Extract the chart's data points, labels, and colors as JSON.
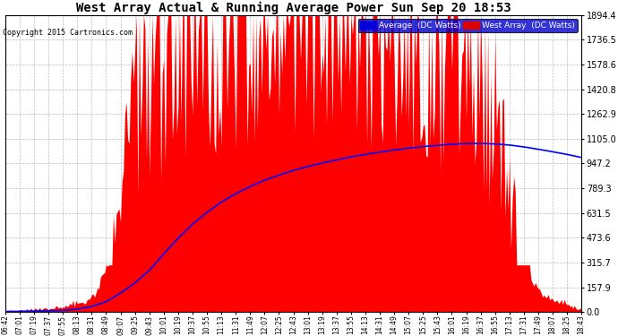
{
  "title": "West Array Actual & Running Average Power Sun Sep 20 18:53",
  "copyright": "Copyright 2015 Cartronics.com",
  "legend_avg": "Average  (DC Watts)",
  "legend_west": "West Array  (DC Watts)",
  "ymax": 1894.4,
  "yticks": [
    0.0,
    157.9,
    315.7,
    473.6,
    631.5,
    789.3,
    947.2,
    1105.0,
    1262.9,
    1420.8,
    1578.6,
    1736.5,
    1894.4
  ],
  "bg_color": "#ffffff",
  "plot_bg_color": "#ffffff",
  "fill_color": "#ff0000",
  "line_color": "#0000ff",
  "grid_color": "#bbbbbb",
  "xtick_labels": [
    "06:42",
    "07:01",
    "07:19",
    "07:37",
    "07:55",
    "08:13",
    "08:31",
    "08:49",
    "09:07",
    "09:25",
    "09:43",
    "10:01",
    "10:19",
    "10:37",
    "10:55",
    "11:13",
    "11:31",
    "11:49",
    "12:07",
    "12:25",
    "12:43",
    "13:01",
    "13:19",
    "13:37",
    "13:55",
    "14:13",
    "14:31",
    "14:49",
    "15:07",
    "15:25",
    "15:43",
    "16:01",
    "16:19",
    "16:37",
    "16:55",
    "17:13",
    "17:31",
    "17:49",
    "18:07",
    "18:25",
    "18:43"
  ],
  "avg_shape": [
    3,
    4,
    5,
    7,
    10,
    18,
    35,
    65,
    120,
    185,
    265,
    370,
    470,
    560,
    635,
    700,
    755,
    800,
    840,
    873,
    903,
    928,
    950,
    970,
    990,
    1005,
    1020,
    1033,
    1045,
    1055,
    1063,
    1070,
    1075,
    1075,
    1072,
    1065,
    1053,
    1038,
    1022,
    1005,
    985
  ]
}
